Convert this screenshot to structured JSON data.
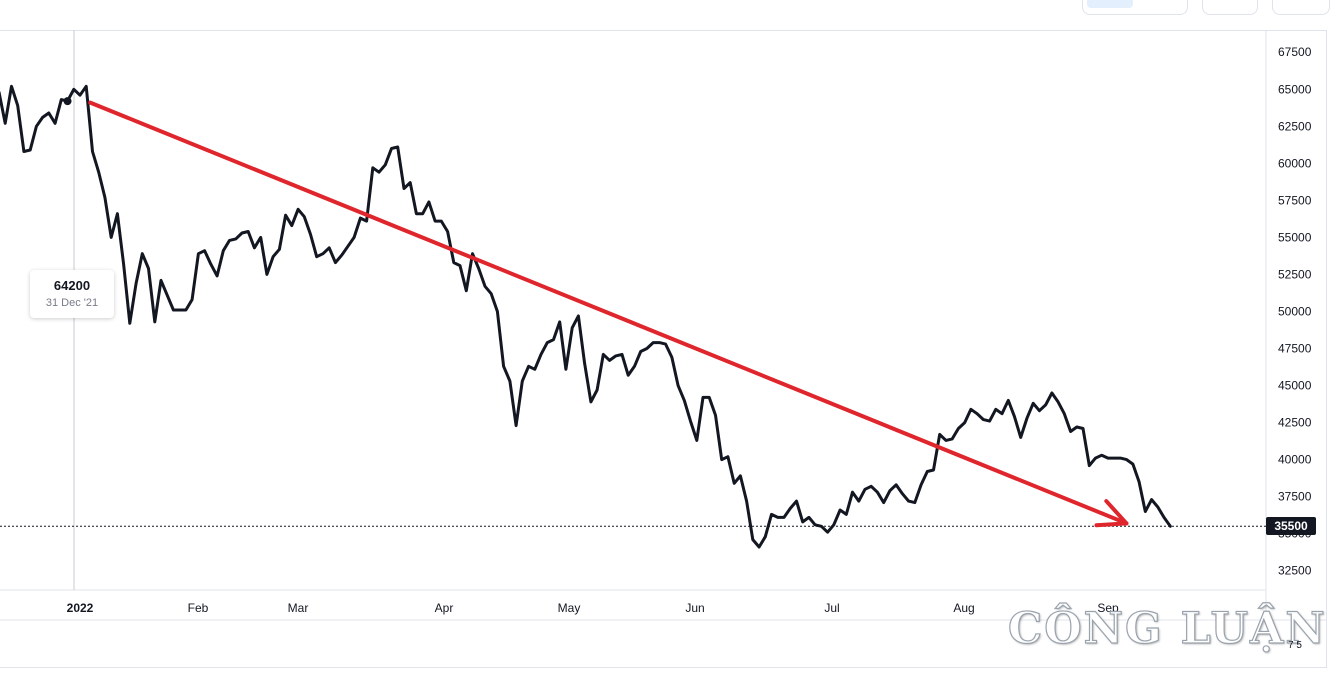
{
  "chart_data": {
    "type": "line",
    "y_ticks": [
      "67500",
      "65000",
      "62500",
      "60000",
      "57500",
      "55000",
      "52500",
      "50000",
      "47500",
      "45000",
      "42500",
      "40000",
      "37500",
      "35000",
      "32500"
    ],
    "x_ticks": [
      {
        "label": "2022",
        "bold": true
      },
      {
        "label": "Feb"
      },
      {
        "label": "Mar"
      },
      {
        "label": "Apr"
      },
      {
        "label": "May"
      },
      {
        "label": "Jun"
      },
      {
        "label": "Jul"
      },
      {
        "label": "Aug"
      },
      {
        "label": "Sep"
      }
    ],
    "ylim": [
      31200,
      69000
    ],
    "last_price": "35500",
    "crosshair": {
      "value": "64200",
      "date": "31 Dec '21"
    },
    "line_color": "#131722",
    "trend_color": "#e0262d",
    "series_price": [
      [
        -15,
        61700
      ],
      [
        -14,
        65100
      ],
      [
        -13,
        64800
      ],
      [
        -12,
        62700
      ],
      [
        -11,
        65200
      ],
      [
        -10,
        63900
      ],
      [
        -9,
        60800
      ],
      [
        -8,
        60900
      ],
      [
        -7,
        62500
      ],
      [
        -6,
        63100
      ],
      [
        -5,
        63400
      ],
      [
        -4,
        62700
      ],
      [
        -3,
        64300
      ],
      [
        -2,
        64200
      ],
      [
        -1,
        65000
      ],
      [
        0,
        64600
      ],
      [
        1,
        65200
      ],
      [
        2,
        60800
      ],
      [
        3,
        59400
      ],
      [
        4,
        57700
      ],
      [
        5,
        55000
      ],
      [
        6,
        56600
      ],
      [
        7,
        53200
      ],
      [
        8,
        49200
      ],
      [
        9,
        51900
      ],
      [
        10,
        53900
      ],
      [
        11,
        52900
      ],
      [
        12,
        49300
      ],
      [
        13,
        52100
      ],
      [
        14,
        51100
      ],
      [
        15,
        50100
      ],
      [
        16,
        50100
      ],
      [
        17,
        50100
      ],
      [
        18,
        50800
      ],
      [
        19,
        53900
      ],
      [
        20,
        54100
      ],
      [
        21,
        53200
      ],
      [
        22,
        52400
      ],
      [
        23,
        54100
      ],
      [
        24,
        54800
      ],
      [
        25,
        54900
      ],
      [
        26,
        55300
      ],
      [
        27,
        55400
      ],
      [
        28,
        54300
      ],
      [
        29,
        55000
      ],
      [
        30,
        52500
      ],
      [
        31,
        53700
      ],
      [
        32,
        54200
      ],
      [
        33,
        56500
      ],
      [
        34,
        55800
      ],
      [
        35,
        56900
      ],
      [
        36,
        56400
      ],
      [
        37,
        55200
      ],
      [
        38,
        53700
      ],
      [
        39,
        53900
      ],
      [
        40,
        54300
      ],
      [
        41,
        53300
      ],
      [
        42,
        53800
      ],
      [
        43,
        54400
      ],
      [
        44,
        55000
      ],
      [
        45,
        56300
      ],
      [
        46,
        56100
      ],
      [
        47,
        59700
      ],
      [
        48,
        59400
      ],
      [
        49,
        59900
      ],
      [
        50,
        61000
      ],
      [
        51,
        61100
      ],
      [
        52,
        58300
      ],
      [
        53,
        58700
      ],
      [
        54,
        56600
      ],
      [
        55,
        56600
      ],
      [
        56,
        57400
      ],
      [
        57,
        56100
      ],
      [
        58,
        56100
      ],
      [
        59,
        55400
      ],
      [
        60,
        53300
      ],
      [
        61,
        53100
      ],
      [
        62,
        51400
      ],
      [
        63,
        53900
      ],
      [
        64,
        52900
      ],
      [
        65,
        51700
      ],
      [
        66,
        51200
      ],
      [
        67,
        50000
      ],
      [
        68,
        46300
      ],
      [
        69,
        45300
      ],
      [
        70,
        42300
      ],
      [
        71,
        45300
      ],
      [
        72,
        46300
      ],
      [
        73,
        46100
      ],
      [
        74,
        47100
      ],
      [
        75,
        47900
      ],
      [
        76,
        48100
      ],
      [
        77,
        49300
      ],
      [
        78,
        46100
      ],
      [
        79,
        48900
      ],
      [
        80,
        49700
      ],
      [
        81,
        46500
      ],
      [
        82,
        43900
      ],
      [
        83,
        44700
      ],
      [
        84,
        47100
      ],
      [
        85,
        46700
      ],
      [
        86,
        47000
      ],
      [
        87,
        47100
      ],
      [
        88,
        45700
      ],
      [
        89,
        46300
      ],
      [
        90,
        47300
      ],
      [
        91,
        47500
      ],
      [
        92,
        47900
      ],
      [
        93,
        47900
      ],
      [
        94,
        47800
      ],
      [
        95,
        46900
      ],
      [
        96,
        45000
      ],
      [
        97,
        44000
      ],
      [
        98,
        42600
      ],
      [
        99,
        41300
      ],
      [
        100,
        44200
      ],
      [
        101,
        44200
      ],
      [
        102,
        43000
      ],
      [
        103,
        40000
      ],
      [
        104,
        40200
      ],
      [
        105,
        38400
      ],
      [
        106,
        38900
      ],
      [
        107,
        37200
      ],
      [
        108,
        34600
      ],
      [
        109,
        34100
      ],
      [
        110,
        34800
      ],
      [
        111,
        36300
      ],
      [
        112,
        36100
      ],
      [
        113,
        36100
      ],
      [
        114,
        36700
      ],
      [
        115,
        37200
      ],
      [
        116,
        35800
      ],
      [
        117,
        36100
      ],
      [
        118,
        35600
      ],
      [
        119,
        35500
      ],
      [
        120,
        35100
      ],
      [
        121,
        35600
      ],
      [
        122,
        36600
      ],
      [
        123,
        36300
      ],
      [
        124,
        37800
      ],
      [
        125,
        37200
      ],
      [
        126,
        38000
      ],
      [
        127,
        38200
      ],
      [
        128,
        37800
      ],
      [
        129,
        37100
      ],
      [
        130,
        37900
      ],
      [
        131,
        38300
      ],
      [
        132,
        37700
      ],
      [
        133,
        37200
      ],
      [
        134,
        37100
      ],
      [
        135,
        38300
      ],
      [
        136,
        39200
      ],
      [
        137,
        39300
      ],
      [
        138,
        41700
      ],
      [
        139,
        41300
      ],
      [
        140,
        41400
      ],
      [
        141,
        42100
      ],
      [
        142,
        42500
      ],
      [
        143,
        43400
      ],
      [
        144,
        43100
      ],
      [
        145,
        42700
      ],
      [
        146,
        42600
      ],
      [
        147,
        43400
      ],
      [
        148,
        43100
      ],
      [
        149,
        44000
      ],
      [
        150,
        42900
      ],
      [
        151,
        41500
      ],
      [
        152,
        42800
      ],
      [
        153,
        43800
      ],
      [
        154,
        43300
      ],
      [
        155,
        43700
      ],
      [
        156,
        44500
      ],
      [
        157,
        43900
      ],
      [
        158,
        43100
      ],
      [
        159,
        41900
      ],
      [
        160,
        42200
      ],
      [
        161,
        42100
      ],
      [
        162,
        39600
      ],
      [
        163,
        40100
      ],
      [
        164,
        40300
      ],
      [
        165,
        40100
      ],
      [
        166,
        40100
      ],
      [
        167,
        40100
      ],
      [
        168,
        40000
      ],
      [
        169,
        39700
      ],
      [
        170,
        38500
      ],
      [
        171,
        36500
      ],
      [
        172,
        37300
      ],
      [
        173,
        36800
      ],
      [
        174,
        36100
      ],
      [
        175,
        35500
      ]
    ],
    "trend_arrow": {
      "from": [
        1,
        64100
      ],
      "to": [
        167,
        35700
      ]
    },
    "crosshair_point": [
      -2,
      64200
    ]
  },
  "watermark": {
    "text": "CÔNG LUẬN"
  },
  "time_axis_corner": "7 5"
}
